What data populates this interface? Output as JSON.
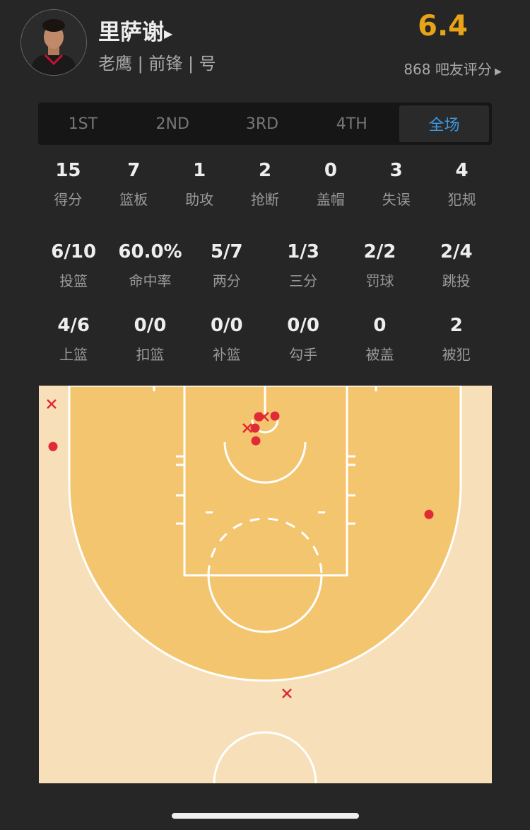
{
  "player": {
    "name": "里萨谢",
    "info": "老鹰 | 前锋 | 号",
    "rating": "6.4",
    "votes": "868 吧友评分"
  },
  "tabs": [
    {
      "label": "1ST"
    },
    {
      "label": "2ND"
    },
    {
      "label": "3RD"
    },
    {
      "label": "4TH"
    },
    {
      "label": "全场",
      "active": true
    }
  ],
  "basic": [
    {
      "v": "15",
      "l": "得分"
    },
    {
      "v": "7",
      "l": "篮板"
    },
    {
      "v": "1",
      "l": "助攻"
    },
    {
      "v": "2",
      "l": "抢断"
    },
    {
      "v": "0",
      "l": "盖帽"
    },
    {
      "v": "3",
      "l": "失误"
    },
    {
      "v": "4",
      "l": "犯规"
    }
  ],
  "shooting": [
    {
      "v": "6/10",
      "l": "投篮"
    },
    {
      "v": "60.0%",
      "l": "命中率"
    },
    {
      "v": "5/7",
      "l": "两分"
    },
    {
      "v": "1/3",
      "l": "三分"
    },
    {
      "v": "2/2",
      "l": "罚球"
    },
    {
      "v": "2/4",
      "l": "跳投"
    }
  ],
  "shot_types": [
    {
      "v": "4/6",
      "l": "上篮"
    },
    {
      "v": "0/0",
      "l": "扣篮"
    },
    {
      "v": "0/0",
      "l": "补篮"
    },
    {
      "v": "0/0",
      "l": "勾手"
    },
    {
      "v": "0",
      "l": "被盖"
    },
    {
      "v": "2",
      "l": "被犯"
    }
  ],
  "colors": {
    "rating": "#e8a316",
    "active_tab": "#3c98e0",
    "shot": "#e02a35",
    "paint": "#f4c56f",
    "outside": "#f7dfb9"
  },
  "shot_chart": {
    "made_count": 6,
    "missed_count": 4
  }
}
